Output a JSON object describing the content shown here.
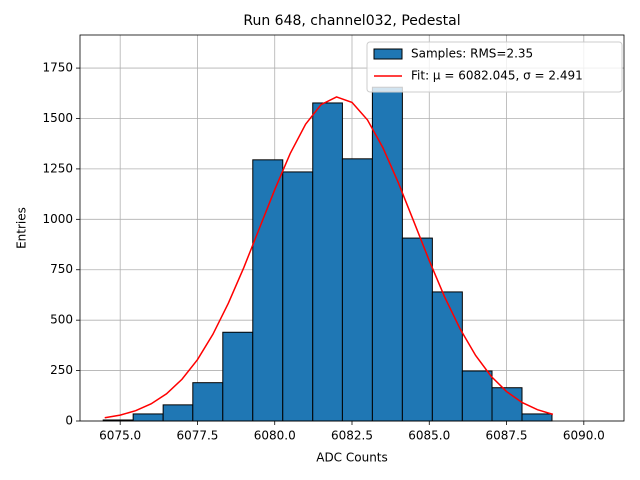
{
  "chart_data": {
    "type": "histogram",
    "title": "Run 648, channel032, Pedestal",
    "xlabel": "ADC Counts",
    "ylabel": "Entries",
    "bins": [
      6074.45,
      6075.42,
      6076.39,
      6077.35,
      6078.32,
      6079.29,
      6080.26,
      6081.23,
      6082.19,
      6083.16,
      6084.13,
      6085.1,
      6086.07,
      6087.03,
      6088.0,
      6088.97
    ],
    "series": [
      {
        "name": "Samples: RMS=2.35",
        "type": "histogram",
        "color": "#1f77b4",
        "values": [
          5,
          35,
          80,
          190,
          440,
          1295,
          1235,
          1577,
          1300,
          1655,
          907,
          640,
          248,
          165,
          35
        ]
      },
      {
        "name": "Fit: μ = 6082.045, σ = 2.491",
        "type": "line",
        "color": "#ff0000",
        "x": [
          6074.5,
          6075,
          6075.5,
          6076,
          6076.5,
          6077,
          6077.5,
          6078,
          6078.5,
          6079,
          6079.5,
          6080,
          6080.5,
          6081,
          6081.5,
          6082,
          6082.5,
          6083,
          6083.5,
          6084,
          6084.5,
          6085,
          6085.5,
          6086,
          6086.5,
          6087,
          6087.5,
          6088,
          6088.5,
          6089
        ],
        "values": [
          16,
          29,
          51,
          85,
          135,
          207,
          304,
          430,
          584,
          761,
          954,
          1147,
          1326,
          1472,
          1569,
          1607,
          1580,
          1493,
          1355,
          1181,
          989,
          795,
          614,
          456,
          325,
          222,
          146,
          92,
          56,
          33
        ]
      }
    ],
    "xlim": [
      6073.7,
      6091.3
    ],
    "xticks": [
      {
        "value": 6075,
        "label": "6075.0"
      },
      {
        "value": 6077.5,
        "label": "6077.5"
      },
      {
        "value": 6080,
        "label": "6080.0"
      },
      {
        "value": 6082.5,
        "label": "6082.5"
      },
      {
        "value": 6085,
        "label": "6085.0"
      },
      {
        "value": 6087.5,
        "label": "6087.5"
      },
      {
        "value": 6090,
        "label": "6090.0"
      }
    ],
    "ylim": [
      0,
      1914
    ],
    "yticks": [
      0,
      250,
      500,
      750,
      1000,
      1250,
      1500,
      1750
    ],
    "grid": true,
    "legend": "upper right"
  }
}
